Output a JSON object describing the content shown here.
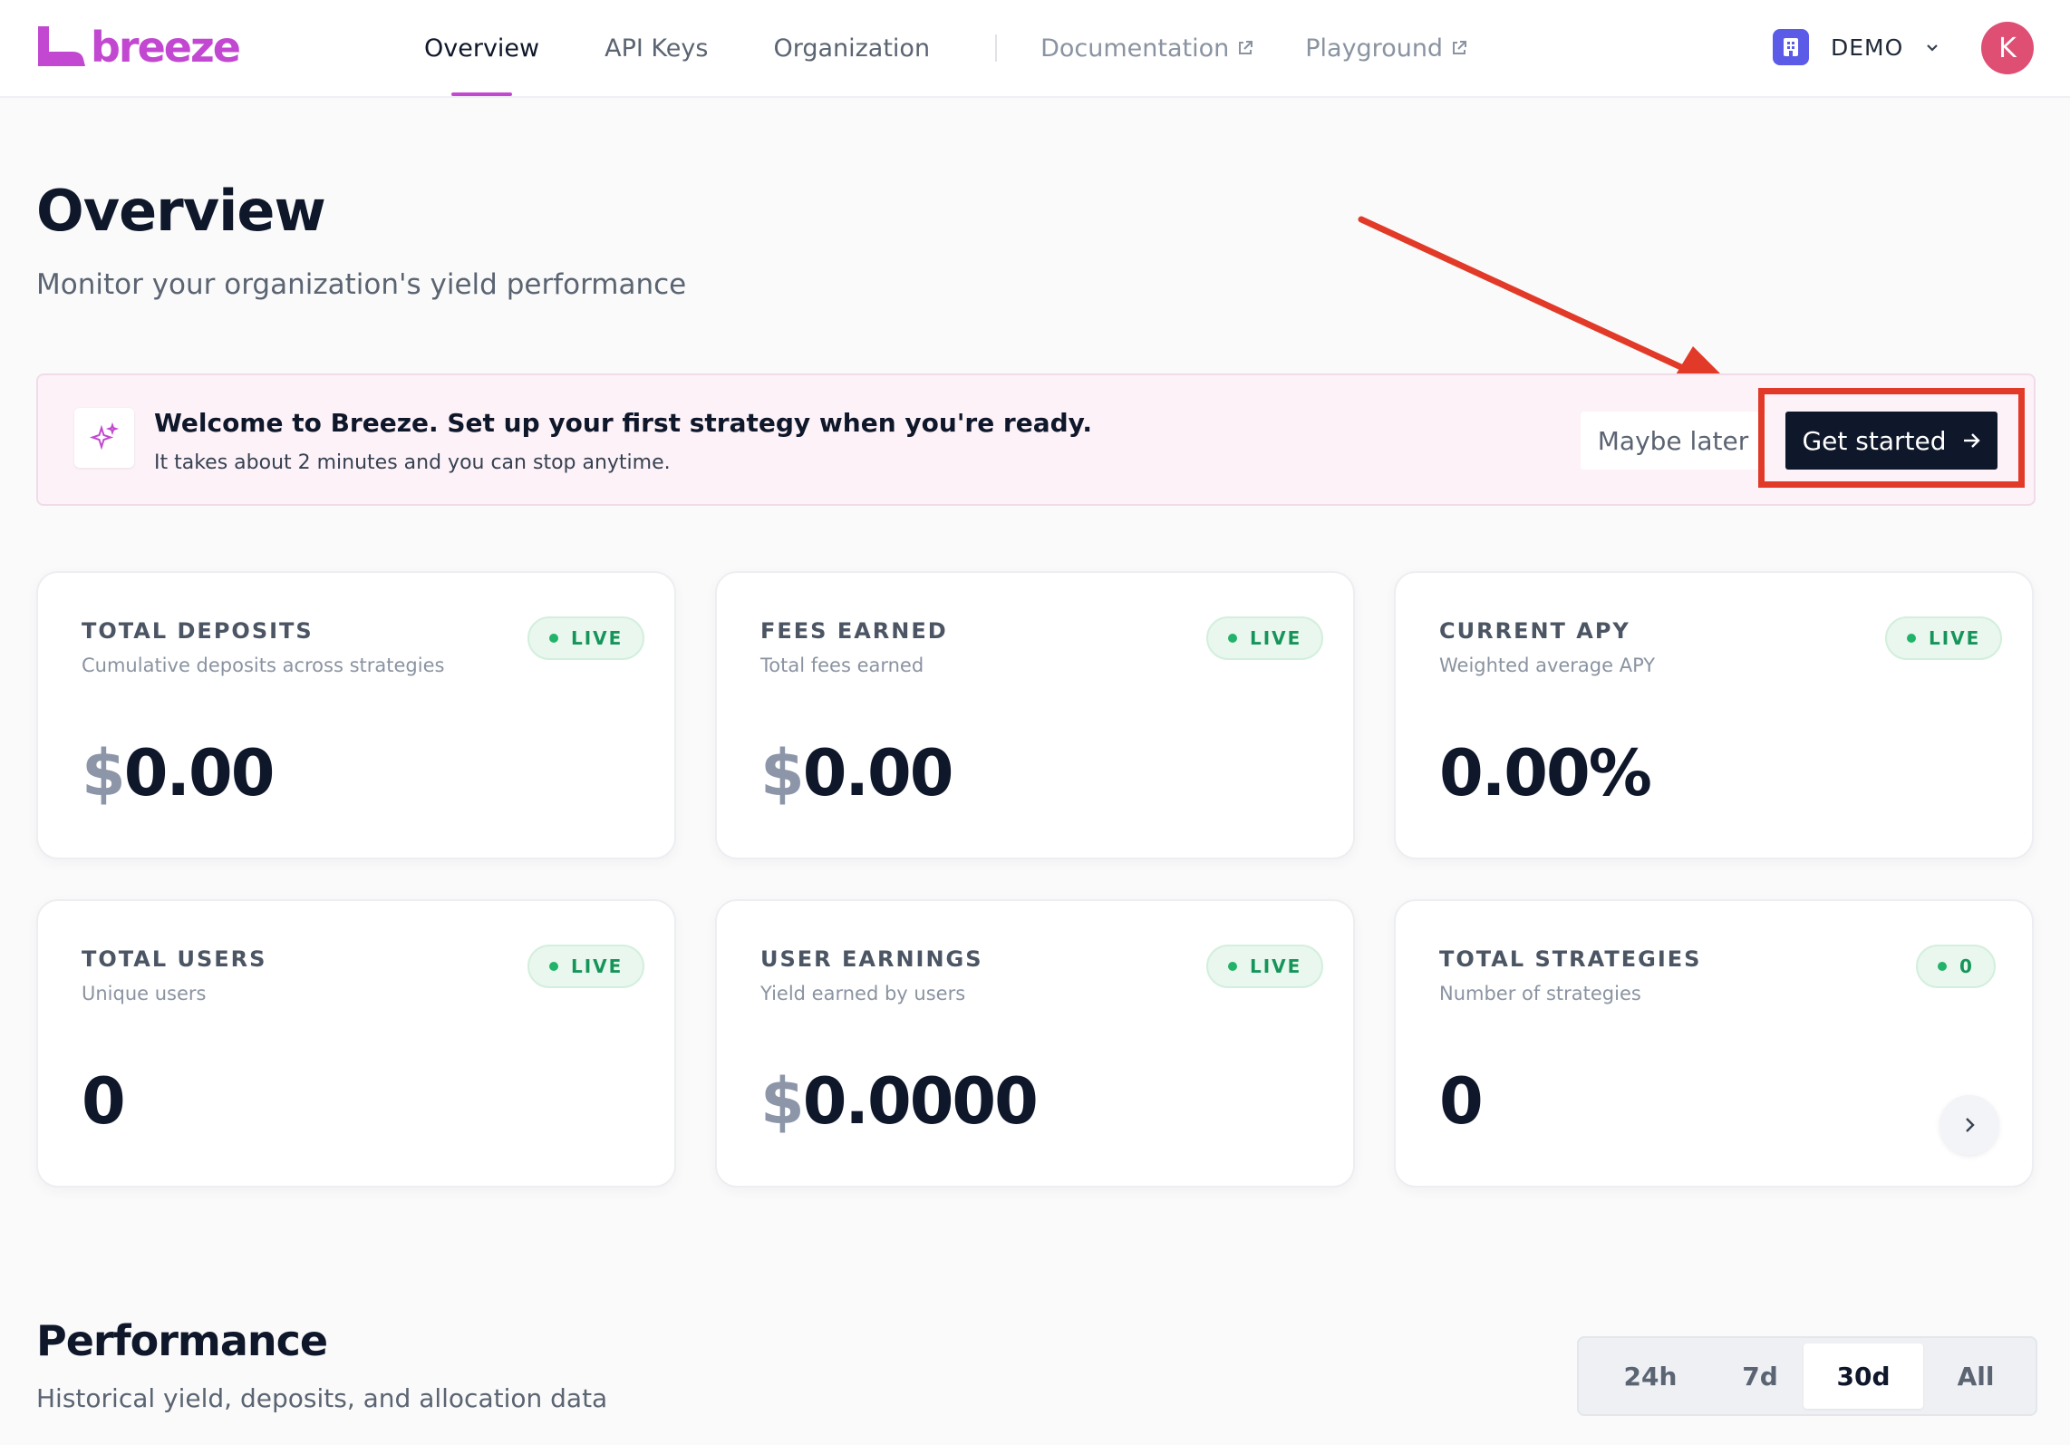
{
  "brand": {
    "name": "breeze",
    "color": "#c248d1"
  },
  "nav": {
    "items": [
      {
        "label": "Overview",
        "active": true
      },
      {
        "label": "API Keys",
        "active": false
      },
      {
        "label": "Organization",
        "active": false
      }
    ],
    "external": [
      {
        "label": "Documentation",
        "icon": "external-link-icon"
      },
      {
        "label": "Playground",
        "icon": "external-link-icon"
      }
    ],
    "org": {
      "name": "DEMO",
      "icon": "building-icon"
    },
    "avatar": {
      "initial": "K",
      "color": "#de4f73"
    }
  },
  "header": {
    "title": "Overview",
    "subtitle": "Monitor your organization's yield performance"
  },
  "banner": {
    "icon": "sparkles-icon",
    "title": "Welcome to Breeze. Set up your first strategy when you're ready.",
    "subtitle": "It takes about 2 minutes and you can stop anytime.",
    "secondary_label": "Maybe later",
    "primary_label": "Get started",
    "annotation_color": "#e23a28"
  },
  "stats": [
    {
      "label": "TOTAL DEPOSITS",
      "desc": "Cumulative deposits across strategies",
      "currency": "$",
      "value": "0.00",
      "badge": "LIVE"
    },
    {
      "label": "FEES EARNED",
      "desc": "Total fees earned",
      "currency": "$",
      "value": "0.00",
      "badge": "LIVE"
    },
    {
      "label": "CURRENT APY",
      "desc": "Weighted average APY",
      "currency": "",
      "value": "0.00%",
      "badge": "LIVE"
    },
    {
      "label": "TOTAL USERS",
      "desc": "Unique users",
      "currency": "",
      "value": "0",
      "badge": "LIVE"
    },
    {
      "label": "USER EARNINGS",
      "desc": "Yield earned by users",
      "currency": "$",
      "value": "0.0000",
      "badge": "LIVE"
    },
    {
      "label": "TOTAL STRATEGIES",
      "desc": "Number of strategies",
      "currency": "",
      "value": "0",
      "badge": "0"
    }
  ],
  "performance": {
    "title": "Performance",
    "subtitle": "Historical yield, deposits, and allocation data",
    "ranges": [
      "24h",
      "7d",
      "30d",
      "All"
    ],
    "selected_range": "30d"
  }
}
